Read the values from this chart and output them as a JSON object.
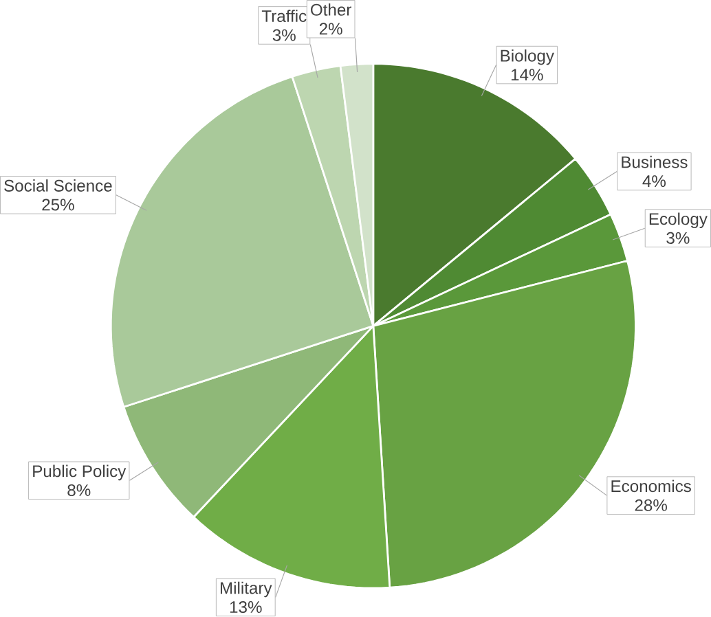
{
  "chart_data": {
    "type": "pie",
    "categories": [
      "Biology",
      "Business",
      "Ecology",
      "Economics",
      "Military",
      "Public Policy",
      "Social Science",
      "Traffic",
      "Other"
    ],
    "values": [
      14,
      4,
      3,
      28,
      13,
      8,
      25,
      3,
      2
    ],
    "value_labels": [
      "14%",
      "4%",
      "3%",
      "28%",
      "13%",
      "8%",
      "25%",
      "3%",
      "2%"
    ],
    "colors": [
      "#4a7a2e",
      "#4f8a33",
      "#5a983a",
      "#68a243",
      "#70ad47",
      "#8fb878",
      "#a9c99a",
      "#bdd6b0",
      "#d2e2ca"
    ]
  }
}
